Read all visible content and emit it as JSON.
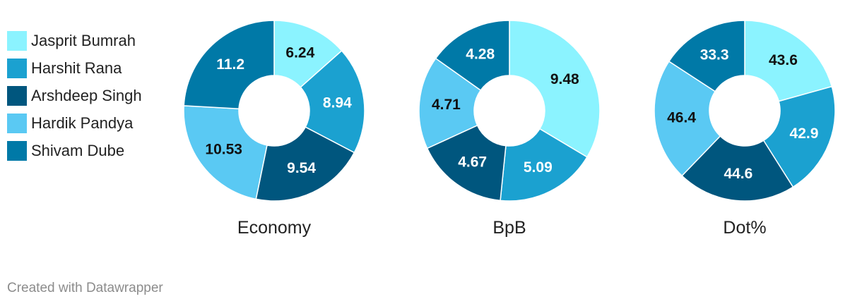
{
  "legend": {
    "items": [
      {
        "label": "Jasprit Bumrah",
        "color": "#8BF3FF"
      },
      {
        "label": "Harshit Rana",
        "color": "#1BA1D0"
      },
      {
        "label": "Arshdeep Singh",
        "color": "#00567E"
      },
      {
        "label": "Hardik Pandya",
        "color": "#5AC9F3"
      },
      {
        "label": "Shivam Dube",
        "color": "#0079A7"
      }
    ]
  },
  "chart_data": [
    {
      "type": "pie",
      "variant": "donut",
      "title": "Economy",
      "categories": [
        "Jasprit Bumrah",
        "Harshit Rana",
        "Arshdeep Singh",
        "Hardik Pandya",
        "Shivam Dube"
      ],
      "values": [
        6.24,
        8.94,
        9.54,
        10.53,
        11.2
      ],
      "labels": [
        "6.24",
        "8.94",
        "9.54",
        "10.53",
        "11.2"
      ]
    },
    {
      "type": "pie",
      "variant": "donut",
      "title": "BpB",
      "categories": [
        "Jasprit Bumrah",
        "Harshit Rana",
        "Arshdeep Singh",
        "Hardik Pandya",
        "Shivam Dube"
      ],
      "values": [
        9.48,
        5.09,
        4.67,
        4.71,
        4.28
      ],
      "labels": [
        "9.48",
        "5.09",
        "4.67",
        "4.71",
        "4.28"
      ]
    },
    {
      "type": "pie",
      "variant": "donut",
      "title": "Dot%",
      "categories": [
        "Jasprit Bumrah",
        "Harshit Rana",
        "Arshdeep Singh",
        "Hardik Pandya",
        "Shivam Dube"
      ],
      "values": [
        43.6,
        42.9,
        44.6,
        46.4,
        33.3
      ],
      "labels": [
        "43.6",
        "42.9",
        "44.6",
        "46.4",
        "33.3"
      ]
    }
  ],
  "footer": {
    "credit": "Created with Datawrapper"
  }
}
